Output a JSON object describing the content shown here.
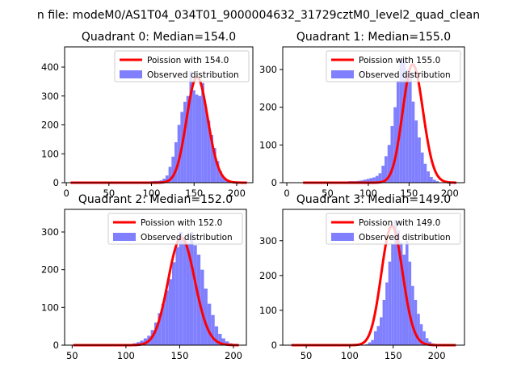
{
  "figure_title": "n file: modeM0/AS1T04_034T01_9000004632_31729cztM0_level2_quad_clean",
  "colors": {
    "curve": "#ff0000",
    "bars": "#8080ff",
    "axis": "#000000",
    "background": "#ffffff"
  },
  "chart_data": [
    {
      "type": "bar",
      "quadrant": 0,
      "title": "Quadrant 0: Median=154.0",
      "xlabel": "",
      "ylabel": "",
      "xlim": [
        -2,
        219
      ],
      "ylim": [
        0,
        470
      ],
      "xticks": [
        0,
        50,
        100,
        150,
        200
      ],
      "yticks": [
        0,
        100,
        200,
        300,
        400
      ],
      "legend_position": "top-right",
      "legend": [
        {
          "label": "Poission with 154.0",
          "kind": "line"
        },
        {
          "label": "Observed distribution",
          "kind": "patch"
        }
      ],
      "poisson_mean": 154.0,
      "curve": {
        "x_start": 5,
        "x_end": 212
      },
      "histogram": {
        "bin_start": 85,
        "bin_width": 3.5,
        "counts": [
          2,
          3,
          3,
          4,
          5,
          6,
          6,
          8,
          14,
          25,
          55,
          90,
          140,
          200,
          245,
          280,
          300,
          385,
          320,
          305,
          300,
          345,
          260,
          215,
          165,
          120,
          75,
          40,
          18,
          8,
          4,
          2
        ]
      }
    },
    {
      "type": "bar",
      "quadrant": 1,
      "title": "Quadrant 1: Median=155.0",
      "xlabel": "",
      "ylabel": "",
      "xlim": [
        -5,
        218
      ],
      "ylim": [
        0,
        360
      ],
      "xticks": [
        0,
        50,
        100,
        150,
        200
      ],
      "yticks": [
        0,
        100,
        200,
        300
      ],
      "legend_position": "top-right",
      "legend": [
        {
          "label": "Poission with 155.0",
          "kind": "line"
        },
        {
          "label": "Observed distribution",
          "kind": "patch"
        }
      ],
      "poisson_mean": 155.0,
      "curve": {
        "x_start": 20,
        "x_end": 208
      },
      "histogram": {
        "bin_start": 57,
        "bin_width": 3.7,
        "counts": [
          2,
          2,
          3,
          3,
          3,
          4,
          4,
          4,
          5,
          6,
          8,
          10,
          12,
          14,
          18,
          25,
          45,
          70,
          100,
          150,
          200,
          270,
          330,
          320,
          300,
          290,
          215,
          165,
          120,
          80,
          50,
          30,
          15,
          8,
          4
        ]
      }
    },
    {
      "type": "bar",
      "quadrant": 2,
      "title": "Quadrant 2: Median=152.0",
      "xlabel": "",
      "ylabel": "",
      "xlim": [
        43,
        212
      ],
      "ylim": [
        0,
        360
      ],
      "xticks": [
        50,
        100,
        150,
        200
      ],
      "yticks": [
        0,
        100,
        200,
        300
      ],
      "legend_position": "top-right",
      "legend": [
        {
          "label": "Poission with 152.0",
          "kind": "line"
        },
        {
          "label": "Observed distribution",
          "kind": "patch"
        }
      ],
      "poisson_mean": 152.0,
      "curve": {
        "x_start": 51,
        "x_end": 205
      },
      "histogram": {
        "bin_start": 100,
        "bin_width": 3.3,
        "counts": [
          2,
          3,
          5,
          8,
          12,
          18,
          25,
          40,
          60,
          85,
          110,
          145,
          175,
          220,
          260,
          300,
          285,
          270,
          300,
          265,
          240,
          200,
          150,
          110,
          80,
          50,
          30,
          18,
          10,
          5,
          3
        ]
      }
    },
    {
      "type": "bar",
      "quadrant": 3,
      "title": "Quadrant 3: Median=149.0",
      "xlabel": "",
      "ylabel": "",
      "xlim": [
        23,
        232
      ],
      "ylim": [
        0,
        390
      ],
      "xticks": [
        50,
        100,
        150,
        200
      ],
      "yticks": [
        0,
        100,
        200,
        300
      ],
      "legend_position": "top-right",
      "legend": [
        {
          "label": "Poission with 149.0",
          "kind": "line"
        },
        {
          "label": "Observed distribution",
          "kind": "patch"
        }
      ],
      "poisson_mean": 149.0,
      "curve": {
        "x_start": 33,
        "x_end": 222
      },
      "histogram": {
        "bin_start": 118,
        "bin_width": 3.3,
        "counts": [
          3,
          8,
          15,
          40,
          55,
          80,
          130,
          180,
          240,
          290,
          360,
          330,
          295,
          260,
          300,
          240,
          170,
          130,
          90,
          60,
          40,
          20,
          10,
          5
        ]
      }
    }
  ]
}
